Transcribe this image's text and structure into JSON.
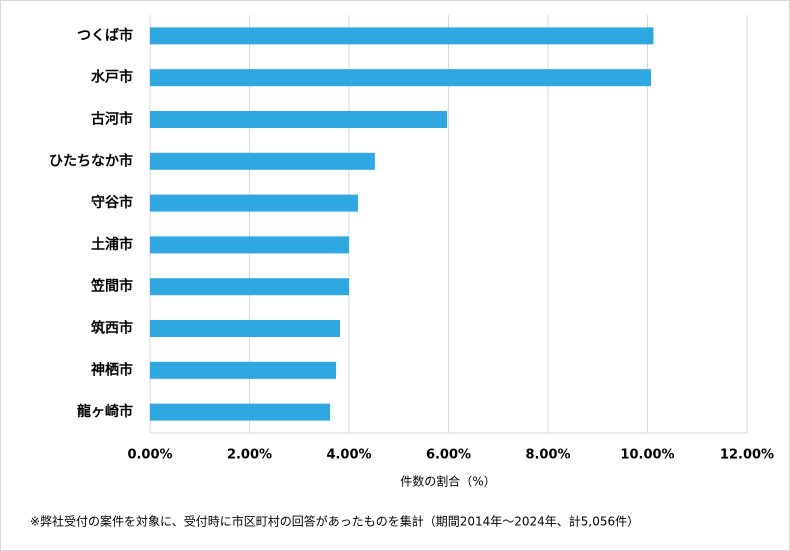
{
  "chart_data": {
    "type": "barh",
    "categories": [
      "つくば市",
      "水戸市",
      "古河市",
      "ひたちなか市",
      "守谷市",
      "土浦市",
      "笠間市",
      "筑西市",
      "神栖市",
      "龍ヶ崎市"
    ],
    "values": [
      10.12,
      10.07,
      5.97,
      4.52,
      4.18,
      4.0,
      4.0,
      3.82,
      3.74,
      3.62
    ],
    "color": "#2fa7e0",
    "xlim": [
      0,
      12
    ],
    "xticks": [
      {
        "value": 0,
        "label": "0.00%"
      },
      {
        "value": 2,
        "label": "2.00%"
      },
      {
        "value": 4,
        "label": "4.00%"
      },
      {
        "value": 6,
        "label": "6.00%"
      },
      {
        "value": 8,
        "label": "8.00%"
      },
      {
        "value": 10,
        "label": "10.00%"
      },
      {
        "value": 12,
        "label": "12.00%"
      }
    ],
    "x_label": "件数の割合（%）",
    "note": "※弊社受付の案件を対象に、受付時に市区町村の回答があったものを集計（期間2014年～2024年、計5,056件）",
    "grid": true
  }
}
